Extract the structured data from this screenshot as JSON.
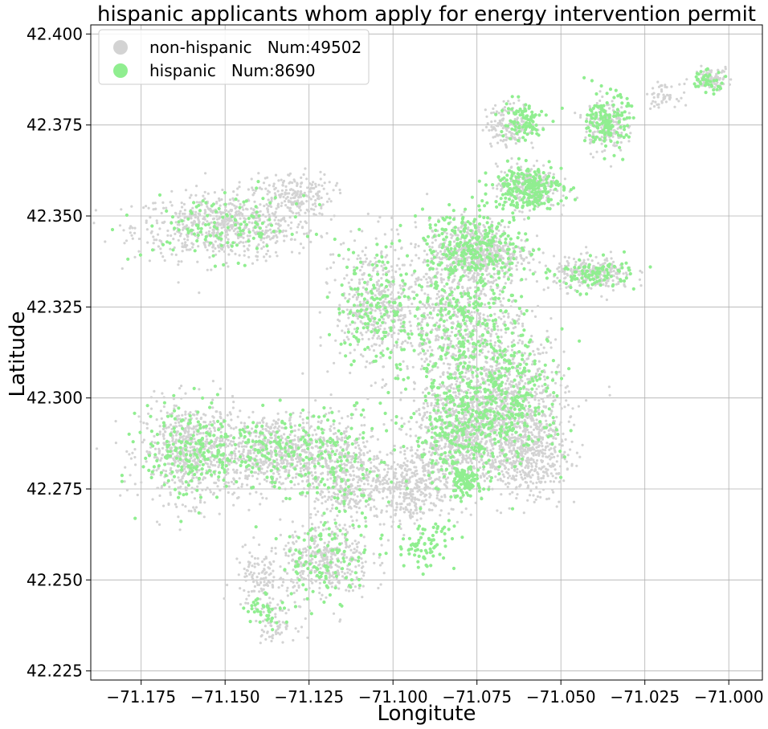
{
  "chart_data": {
    "type": "scatter",
    "title": "hispanic applicants whom apply for energy intervention permit",
    "xlabel": "Longitute",
    "ylabel": "Latitude",
    "xlim": [
      -71.19,
      -70.99
    ],
    "ylim": [
      42.2225,
      42.4025
    ],
    "xticks": [
      -71.175,
      -71.15,
      -71.125,
      -71.1,
      -71.075,
      -71.05,
      -71.025,
      -71.0
    ],
    "xtick_labels": [
      "−71.175",
      "−71.150",
      "−71.125",
      "−71.100",
      "−71.075",
      "−71.050",
      "−71.025",
      "−71.000"
    ],
    "yticks": [
      42.225,
      42.25,
      42.275,
      42.3,
      42.325,
      42.35,
      42.375,
      42.4
    ],
    "ytick_labels": [
      "42.225",
      "42.250",
      "42.275",
      "42.300",
      "42.325",
      "42.350",
      "42.375",
      "42.400"
    ],
    "grid": true,
    "legend_position": "top-left",
    "series": [
      {
        "name": "non-hispanic   Num:49502",
        "color": "#d3d3d3",
        "count": 49502,
        "regions": [
          {
            "lon": -71.15,
            "lat": 42.347,
            "sx": 0.018,
            "sy": 0.006,
            "n": 650
          },
          {
            "lon": -71.13,
            "lat": 42.356,
            "sx": 0.008,
            "sy": 0.004,
            "n": 200
          },
          {
            "lon": -71.16,
            "lat": 42.285,
            "sx": 0.01,
            "sy": 0.009,
            "n": 650
          },
          {
            "lon": -71.135,
            "lat": 42.285,
            "sx": 0.01,
            "sy": 0.007,
            "n": 550
          },
          {
            "lon": -71.115,
            "lat": 42.28,
            "sx": 0.008,
            "sy": 0.01,
            "n": 450
          },
          {
            "lon": -71.12,
            "lat": 42.255,
            "sx": 0.009,
            "sy": 0.007,
            "n": 380
          },
          {
            "lon": -71.14,
            "lat": 42.25,
            "sx": 0.005,
            "sy": 0.006,
            "n": 120
          },
          {
            "lon": -71.135,
            "lat": 42.238,
            "sx": 0.004,
            "sy": 0.003,
            "n": 70
          },
          {
            "lon": -71.105,
            "lat": 42.325,
            "sx": 0.008,
            "sy": 0.012,
            "n": 420
          },
          {
            "lon": -71.08,
            "lat": 42.32,
            "sx": 0.012,
            "sy": 0.014,
            "n": 900
          },
          {
            "lon": -71.065,
            "lat": 42.3,
            "sx": 0.011,
            "sy": 0.012,
            "n": 850
          },
          {
            "lon": -71.08,
            "lat": 42.29,
            "sx": 0.01,
            "sy": 0.01,
            "n": 700
          },
          {
            "lon": -71.06,
            "lat": 42.285,
            "sx": 0.008,
            "sy": 0.008,
            "n": 500
          },
          {
            "lon": -71.095,
            "lat": 42.275,
            "sx": 0.008,
            "sy": 0.007,
            "n": 380
          },
          {
            "lon": -71.075,
            "lat": 42.34,
            "sx": 0.01,
            "sy": 0.006,
            "n": 550
          },
          {
            "lon": -71.06,
            "lat": 42.358,
            "sx": 0.006,
            "sy": 0.004,
            "n": 220
          },
          {
            "lon": -71.065,
            "lat": 42.375,
            "sx": 0.005,
            "sy": 0.004,
            "n": 150
          },
          {
            "lon": -71.037,
            "lat": 42.375,
            "sx": 0.004,
            "sy": 0.005,
            "n": 170
          },
          {
            "lon": -71.04,
            "lat": 42.334,
            "sx": 0.008,
            "sy": 0.003,
            "n": 260
          },
          {
            "lon": -71.005,
            "lat": 42.388,
            "sx": 0.004,
            "sy": 0.002,
            "n": 80
          },
          {
            "lon": -71.02,
            "lat": 42.383,
            "sx": 0.003,
            "sy": 0.002,
            "n": 50
          }
        ]
      },
      {
        "name": "hispanic   Num:8690",
        "color": "#90ee90",
        "count": 8690,
        "regions": [
          {
            "lon": -71.15,
            "lat": 42.347,
            "sx": 0.016,
            "sy": 0.006,
            "n": 130
          },
          {
            "lon": -71.16,
            "lat": 42.285,
            "sx": 0.01,
            "sy": 0.009,
            "n": 210
          },
          {
            "lon": -71.135,
            "lat": 42.285,
            "sx": 0.01,
            "sy": 0.007,
            "n": 150
          },
          {
            "lon": -71.115,
            "lat": 42.282,
            "sx": 0.008,
            "sy": 0.01,
            "n": 120
          },
          {
            "lon": -71.12,
            "lat": 42.255,
            "sx": 0.009,
            "sy": 0.007,
            "n": 110
          },
          {
            "lon": -71.138,
            "lat": 42.242,
            "sx": 0.004,
            "sy": 0.003,
            "n": 40
          },
          {
            "lon": -71.105,
            "lat": 42.325,
            "sx": 0.008,
            "sy": 0.012,
            "n": 170
          },
          {
            "lon": -71.08,
            "lat": 42.32,
            "sx": 0.012,
            "sy": 0.014,
            "n": 320
          },
          {
            "lon": -71.065,
            "lat": 42.3,
            "sx": 0.011,
            "sy": 0.012,
            "n": 300
          },
          {
            "lon": -71.08,
            "lat": 42.29,
            "sx": 0.01,
            "sy": 0.01,
            "n": 260
          },
          {
            "lon": -71.079,
            "lat": 42.277,
            "sx": 0.003,
            "sy": 0.003,
            "n": 90
          },
          {
            "lon": -71.075,
            "lat": 42.342,
            "sx": 0.01,
            "sy": 0.006,
            "n": 260
          },
          {
            "lon": -71.06,
            "lat": 42.358,
            "sx": 0.007,
            "sy": 0.004,
            "n": 240
          },
          {
            "lon": -71.062,
            "lat": 42.376,
            "sx": 0.005,
            "sy": 0.004,
            "n": 90
          },
          {
            "lon": -71.036,
            "lat": 42.376,
            "sx": 0.004,
            "sy": 0.005,
            "n": 150
          },
          {
            "lon": -71.04,
            "lat": 42.334,
            "sx": 0.008,
            "sy": 0.003,
            "n": 100
          },
          {
            "lon": -71.007,
            "lat": 42.387,
            "sx": 0.004,
            "sy": 0.002,
            "n": 40
          },
          {
            "lon": -71.09,
            "lat": 42.26,
            "sx": 0.006,
            "sy": 0.005,
            "n": 80
          }
        ]
      }
    ]
  }
}
